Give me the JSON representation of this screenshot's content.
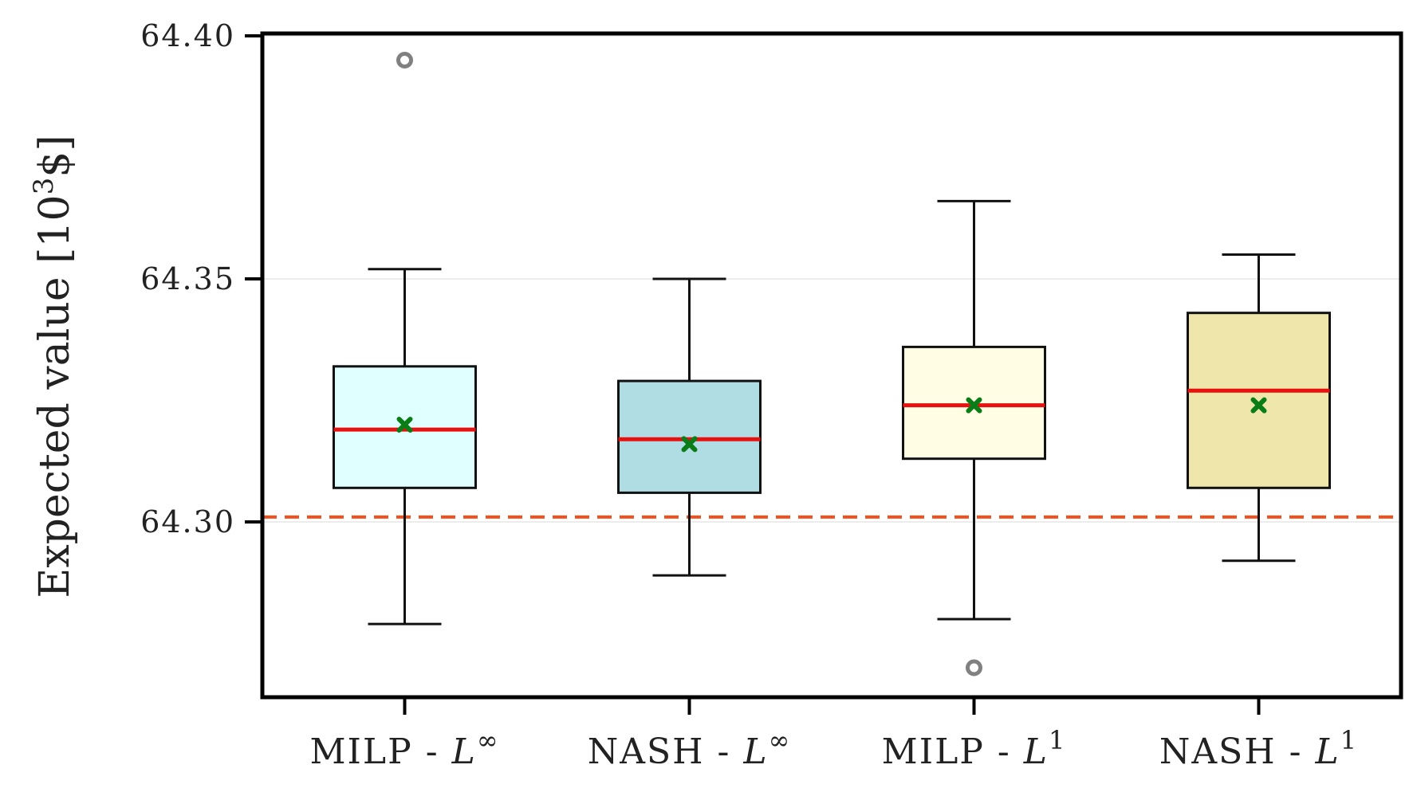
{
  "chart_data": {
    "type": "box",
    "title": "",
    "xlabel": "",
    "ylabel_main": "Expected value [10",
    "ylabel_sup": "3",
    "ylabel_tail": "$]",
    "ylim": [
      64.264,
      64.4
    ],
    "yticks": [
      {
        "value": 64.3,
        "label": "64.30"
      },
      {
        "value": 64.35,
        "label": "64.35"
      },
      {
        "value": 64.4,
        "label": "64.40"
      }
    ],
    "reference_line": {
      "value": 64.301,
      "style": "dashed",
      "color": "#f0501e"
    },
    "colors": {
      "median": "#e8110f",
      "mean": "#0a7d16",
      "outlier": "#808080",
      "whisker": "#111111",
      "grid": "#e6e6e6"
    },
    "categories": [
      {
        "name": "MILP - ",
        "sup": "∞",
        "italic": "L",
        "fill": "#e0ffff",
        "whisker_low": 64.279,
        "q1": 64.307,
        "median": 64.319,
        "mean": 64.32,
        "q3": 64.332,
        "whisker_high": 64.352,
        "outliers": [
          64.395
        ]
      },
      {
        "name": "NASH - ",
        "sup": "∞",
        "italic": "L",
        "fill": "#b0dde4",
        "whisker_low": 64.289,
        "q1": 64.306,
        "median": 64.317,
        "mean": 64.316,
        "q3": 64.329,
        "whisker_high": 64.35,
        "outliers": []
      },
      {
        "name": "MILP - ",
        "sup": "1",
        "italic": "L",
        "fill": "#fffde4",
        "whisker_low": 64.28,
        "q1": 64.313,
        "median": 64.324,
        "mean": 64.324,
        "q3": 64.336,
        "whisker_high": 64.366,
        "outliers": [
          64.27
        ]
      },
      {
        "name": "NASH - ",
        "sup": "1",
        "italic": "L",
        "fill": "#eee6aa",
        "whisker_low": 64.292,
        "q1": 64.307,
        "median": 64.327,
        "mean": 64.324,
        "q3": 64.343,
        "whisker_high": 64.355,
        "outliers": []
      }
    ]
  }
}
